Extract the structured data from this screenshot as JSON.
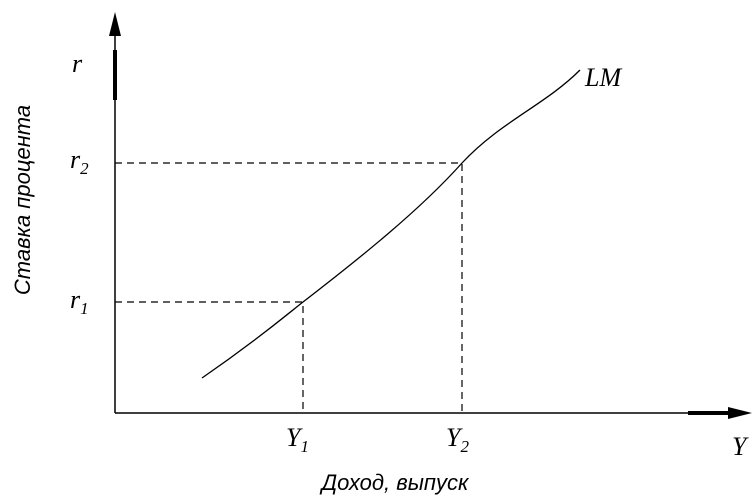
{
  "y_axis": {
    "symbol": "r",
    "title": "Ставка процента"
  },
  "x_axis": {
    "symbol": "Y",
    "title": "Доход, выпуск"
  },
  "curve": {
    "label": "LM"
  },
  "points": [
    {
      "x": {
        "label": "Y",
        "subscript": "1"
      },
      "y": {
        "label": "r",
        "subscript": "1"
      }
    },
    {
      "x": {
        "label": "Y",
        "subscript": "2"
      },
      "y": {
        "label": "r",
        "subscript": "2"
      }
    }
  ]
}
